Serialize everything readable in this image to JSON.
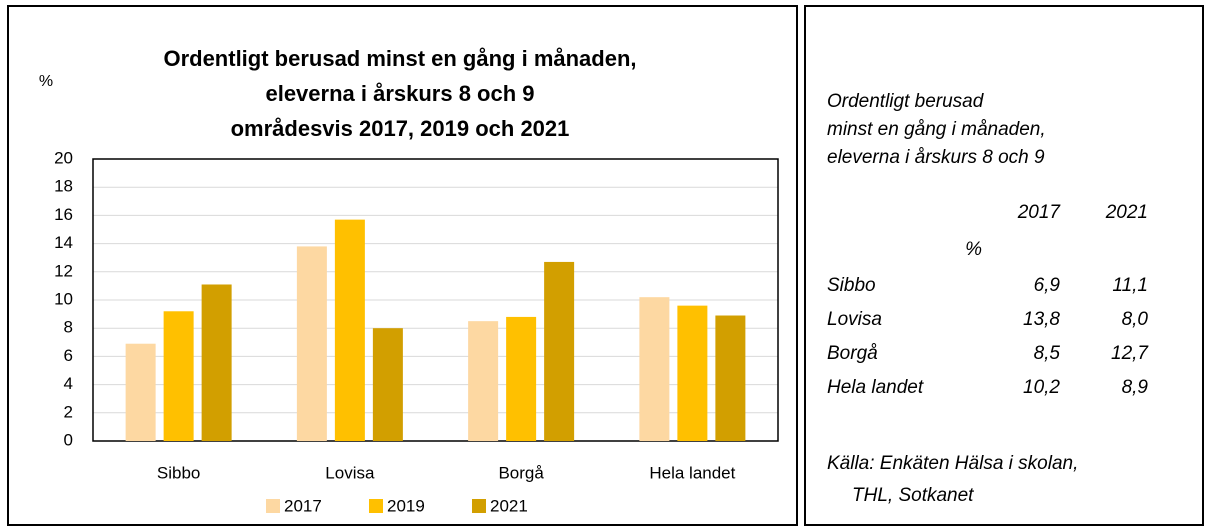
{
  "chart_data": {
    "type": "bar",
    "title": [
      "Ordentligt berusad minst en gång i månaden,",
      "eleverna i årskurs 8 och 9",
      "områdesvis 2017, 2019 och 2021"
    ],
    "y_label": "%",
    "categories": [
      "Sibbo",
      "Lovisa",
      "Borgå",
      "Hela landet"
    ],
    "series": [
      {
        "name": "2017",
        "color": "#fdd8a2",
        "values": [
          6.9,
          13.8,
          8.5,
          10.2
        ]
      },
      {
        "name": "2019",
        "color": "#ffc000",
        "values": [
          9.2,
          15.7,
          8.8,
          9.6
        ]
      },
      {
        "name": "2021",
        "color": "#d29f00",
        "values": [
          11.1,
          8.0,
          12.7,
          8.9
        ]
      }
    ],
    "ylim": [
      0,
      20
    ],
    "yticks": [
      0,
      2,
      4,
      6,
      8,
      10,
      12,
      14,
      16,
      18,
      20
    ],
    "grid": true,
    "legend": "bottom"
  },
  "side_panel": {
    "title": [
      "Ordentligt berusad",
      "minst en gång i månaden,",
      "eleverna i årskurs 8 och 9"
    ],
    "columns": [
      "2017",
      "2021"
    ],
    "unit": "%",
    "rows": [
      {
        "label": "Sibbo",
        "values": [
          "6,9",
          "11,1"
        ]
      },
      {
        "label": "Lovisa",
        "values": [
          "13,8",
          "8,0"
        ]
      },
      {
        "label": "Borgå",
        "values": [
          "8,5",
          "12,7"
        ]
      },
      {
        "label": "Hela landet",
        "values": [
          "10,2",
          "8,9"
        ]
      }
    ],
    "source": [
      "Källa: Enkäten Hälsa i skolan,",
      "THL, Sotkanet"
    ]
  }
}
